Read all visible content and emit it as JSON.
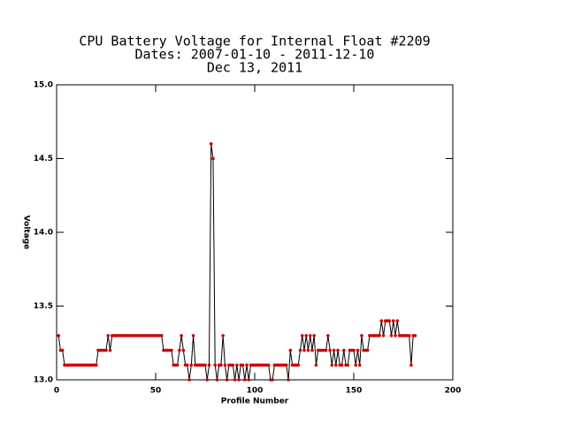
{
  "chart_data": {
    "type": "line",
    "title": "CPU Battery Voltage for Internal Float #2209",
    "subtitle": [
      "Dates:  2007-01-10 -  2011-12-10",
      "Dec 13, 2011"
    ],
    "x_label": "Profile Number",
    "y_label": "Voltage",
    "xlim": [
      0,
      200
    ],
    "xticks": [
      0,
      50,
      100,
      150,
      200
    ],
    "ylim": [
      13.0,
      15.0
    ],
    "yticks": [
      {
        "value": 13.0,
        "label": "13.0"
      },
      {
        "value": 13.5,
        "label": "13.5"
      },
      {
        "value": 14.0,
        "label": "14.0"
      },
      {
        "value": 14.5,
        "label": "14.5"
      },
      {
        "value": 15.0,
        "label": "15.0"
      }
    ],
    "line_color": "#000000",
    "marker_color": "#cc0000",
    "x": [
      1,
      2,
      3,
      4,
      5,
      6,
      7,
      8,
      9,
      10,
      11,
      12,
      13,
      14,
      15,
      16,
      17,
      18,
      19,
      20,
      21,
      22,
      23,
      24,
      25,
      26,
      27,
      28,
      29,
      30,
      31,
      32,
      33,
      34,
      35,
      36,
      37,
      38,
      39,
      40,
      41,
      42,
      43,
      44,
      45,
      46,
      47,
      48,
      49,
      50,
      51,
      52,
      53,
      54,
      55,
      56,
      57,
      58,
      59,
      60,
      61,
      62,
      63,
      64,
      65,
      66,
      67,
      68,
      69,
      70,
      71,
      72,
      73,
      74,
      75,
      76,
      77,
      78,
      79,
      80,
      81,
      82,
      83,
      84,
      85,
      86,
      87,
      88,
      89,
      90,
      91,
      92,
      93,
      94,
      95,
      96,
      97,
      98,
      99,
      100,
      101,
      102,
      103,
      104,
      105,
      106,
      107,
      108,
      109,
      110,
      111,
      112,
      113,
      114,
      115,
      116,
      117,
      118,
      119,
      120,
      121,
      122,
      123,
      124,
      125,
      126,
      127,
      128,
      129,
      130,
      131,
      132,
      133,
      134,
      135,
      136,
      137,
      138,
      139,
      140,
      141,
      142,
      143,
      144,
      145,
      146,
      147,
      148,
      149,
      150,
      151,
      152,
      153,
      154,
      155,
      156,
      157,
      158,
      159,
      160,
      161,
      162,
      163,
      164,
      165,
      166,
      167,
      168,
      169,
      170,
      171,
      172,
      173,
      174,
      175,
      176,
      177,
      178,
      179,
      180,
      181
    ],
    "values": [
      13.3,
      13.2,
      13.2,
      13.1,
      13.1,
      13.1,
      13.1,
      13.1,
      13.1,
      13.1,
      13.1,
      13.1,
      13.1,
      13.1,
      13.1,
      13.1,
      13.1,
      13.1,
      13.1,
      13.1,
      13.2,
      13.2,
      13.2,
      13.2,
      13.2,
      13.3,
      13.2,
      13.3,
      13.3,
      13.3,
      13.3,
      13.3,
      13.3,
      13.3,
      13.3,
      13.3,
      13.3,
      13.3,
      13.3,
      13.3,
      13.3,
      13.3,
      13.3,
      13.3,
      13.3,
      13.3,
      13.3,
      13.3,
      13.3,
      13.3,
      13.3,
      13.3,
      13.3,
      13.2,
      13.2,
      13.2,
      13.2,
      13.2,
      13.1,
      13.1,
      13.1,
      13.2,
      13.3,
      13.2,
      13.1,
      13.1,
      13.0,
      13.1,
      13.3,
      13.1,
      13.1,
      13.1,
      13.1,
      13.1,
      13.1,
      13.0,
      13.1,
      14.6,
      14.5,
      13.1,
      13.0,
      13.1,
      13.1,
      13.3,
      13.1,
      13.0,
      13.1,
      13.1,
      13.1,
      13.0,
      13.1,
      13.0,
      13.1,
      13.1,
      13.0,
      13.1,
      13.0,
      13.1,
      13.1,
      13.1,
      13.1,
      13.1,
      13.1,
      13.1,
      13.1,
      13.1,
      13.1,
      13.0,
      13.0,
      13.1,
      13.1,
      13.1,
      13.1,
      13.1,
      13.1,
      13.1,
      13.0,
      13.2,
      13.1,
      13.1,
      13.1,
      13.1,
      13.2,
      13.3,
      13.2,
      13.3,
      13.2,
      13.3,
      13.2,
      13.3,
      13.1,
      13.2,
      13.2,
      13.2,
      13.2,
      13.2,
      13.3,
      13.2,
      13.1,
      13.2,
      13.1,
      13.2,
      13.1,
      13.1,
      13.2,
      13.1,
      13.1,
      13.2,
      13.2,
      13.2,
      13.1,
      13.2,
      13.1,
      13.3,
      13.2,
      13.2,
      13.2,
      13.3,
      13.3,
      13.3,
      13.3,
      13.3,
      13.3,
      13.4,
      13.3,
      13.4,
      13.4,
      13.4,
      13.3,
      13.4,
      13.3,
      13.4,
      13.3,
      13.3,
      13.3,
      13.3,
      13.3,
      13.3,
      13.1,
      13.3,
      13.3
    ]
  }
}
